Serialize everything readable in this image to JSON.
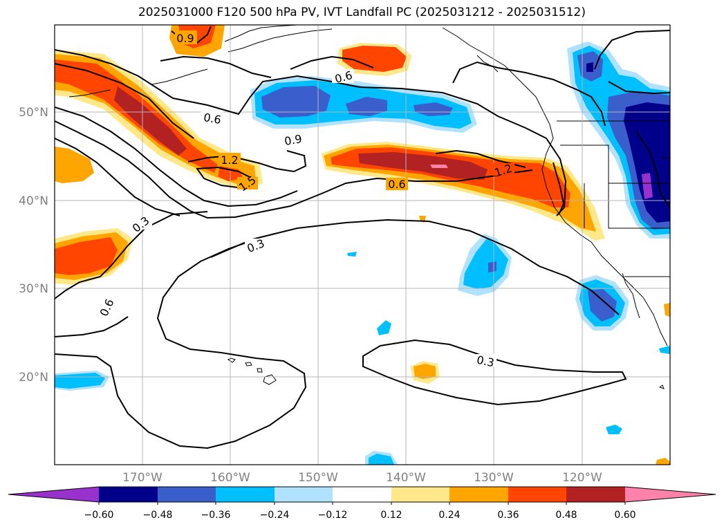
{
  "title": "2025031000 F120 500 hPa PV, IVT Landfall PC (2025031212 - 2025031512)",
  "lat_labels": [
    "50°N",
    "40°N",
    "30°N",
    "20°N"
  ],
  "lon_labels": [
    "170°W",
    "160°W",
    "150°W",
    "140°W",
    "130°W",
    "120°W"
  ],
  "contour_labels": [
    "0.9",
    "0.6",
    "0.6",
    "0.9",
    "1.2",
    "1.5",
    "1.2",
    "0.6",
    "0.3",
    "0.3",
    "0.6",
    "0.3"
  ],
  "colorbar": {
    "ticks": [
      "−0.60",
      "−0.48",
      "−0.36",
      "−0.24",
      "−0.12",
      "0.12",
      "0.24",
      "0.36",
      "0.48",
      "0.60"
    ],
    "colors": [
      "#9932cc",
      "#00008b",
      "#3a5fcd",
      "#00bfff",
      "#b0e2ff",
      "#ffffff",
      "#ffe88a",
      "#ffa500",
      "#ff4500",
      "#b22222",
      "#ff82ab"
    ]
  }
}
